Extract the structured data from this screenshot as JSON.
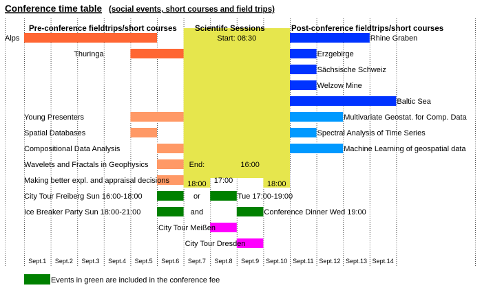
{
  "title": "Conference time table",
  "subtitle": "(social events, short courses and field trips)",
  "legend": {
    "label": "Events in green are included in the conference fee",
    "color": "#008000"
  },
  "colors": {
    "pre_trip": "#ff6633",
    "pre_course": "#ff9966",
    "session": "#e6e64d",
    "post_trip": "#0033ff",
    "post_course": "#0099ff",
    "green": "#008000",
    "magenta": "#ff00ff"
  },
  "chart_data": {
    "type": "gantt",
    "title": "Conference time table",
    "subtitle": "(social events, short courses and field trips)",
    "days": [
      "Sept.1",
      "Sept.2",
      "Sept.3",
      "Sept.4",
      "Sept.5",
      "Sept.6",
      "Sept.7",
      "Sept.8",
      "Sept.9",
      "Sept.10",
      "Sept.11",
      "Sept.12",
      "Sept.13",
      "Sept.14"
    ],
    "section_headers": [
      {
        "text": "Pre-conference fieldtrips/short courses",
        "day": 1
      },
      {
        "text": "Scientifc Sessions",
        "day": 8.5
      },
      {
        "text": "Post-conference fieldtrips/short courses",
        "day": 11.5
      }
    ],
    "sessions_block": {
      "start_day": 7,
      "end_day": 10,
      "color_key": "session"
    },
    "bars": [
      {
        "row": 0,
        "start": 1,
        "end": 5,
        "color_key": "pre_trip",
        "label": "Alps",
        "label_side": "left"
      },
      {
        "row": 0,
        "start": 11,
        "end": 13,
        "color_key": "post_trip",
        "label": "Rhine Graben",
        "label_side": "right"
      },
      {
        "row": 1,
        "start": 5,
        "end": 6,
        "color_key": "pre_trip",
        "label": "Thuringa",
        "label_side": "left"
      },
      {
        "row": 1,
        "start": 11,
        "end": 11,
        "color_key": "post_trip",
        "label": "Erzgebirge",
        "label_side": "right"
      },
      {
        "row": 2,
        "start": 11,
        "end": 11,
        "color_key": "post_trip",
        "label": "Sächsische Schweiz",
        "label_side": "right"
      },
      {
        "row": 3,
        "start": 11,
        "end": 11,
        "color_key": "post_trip",
        "label": "Welzow Mine",
        "label_side": "right"
      },
      {
        "row": 4,
        "start": 11,
        "end": 14,
        "color_key": "post_trip",
        "label": "Baltic Sea",
        "label_side": "right"
      },
      {
        "row": 5,
        "start": 5,
        "end": 6,
        "color_key": "pre_course",
        "label": "Young Presenters",
        "label_side": "leftmargin"
      },
      {
        "row": 5,
        "start": 11,
        "end": 12,
        "color_key": "post_course",
        "label": "Multivariate Geostat. for Comp. Data",
        "label_side": "right"
      },
      {
        "row": 6,
        "start": 5,
        "end": 5,
        "color_key": "pre_course",
        "label": "Spatial Databases",
        "label_side": "leftmargin"
      },
      {
        "row": 6,
        "start": 11,
        "end": 11,
        "color_key": "post_course",
        "label": "Spectral Analysis of Time Series",
        "label_side": "right"
      },
      {
        "row": 7,
        "start": 6,
        "end": 6,
        "color_key": "pre_course",
        "label": "Compositional Data Analysis",
        "label_side": "leftmargin"
      },
      {
        "row": 7,
        "start": 11,
        "end": 12,
        "color_key": "post_course",
        "label": "Machine Learning of geospatial data",
        "label_side": "right"
      },
      {
        "row": 8,
        "start": 6,
        "end": 6,
        "color_key": "pre_course",
        "label": "Wavelets and Fractals in Geophysics",
        "label_side": "leftmargin"
      },
      {
        "row": 9,
        "start": 6,
        "end": 6,
        "color_key": "pre_course",
        "label": "Making better expl. and appraisal decisions",
        "label_side": "leftmargin"
      },
      {
        "row": 10,
        "start": 6,
        "end": 6,
        "color_key": "green",
        "label": "City Tour Freiberg Sun 16:00-18:00",
        "label_side": "leftmargin"
      },
      {
        "row": 10,
        "start": 8,
        "end": 8,
        "color_key": "green",
        "label": "Tue 17:00-19:00",
        "label_side": "right"
      },
      {
        "row": 11,
        "start": 6,
        "end": 6,
        "color_key": "green",
        "label": "Ice Breaker Party Sun 18:00-21:00",
        "label_side": "leftmargin"
      },
      {
        "row": 11,
        "start": 9,
        "end": 9,
        "color_key": "green",
        "label": "Conference Dinner Wed 19:00",
        "label_side": "right"
      },
      {
        "row": 12,
        "start": 8,
        "end": 8,
        "color_key": "magenta",
        "label": "City Tour Meißen",
        "label_side": "left"
      },
      {
        "row": 13,
        "start": 9,
        "end": 9,
        "color_key": "magenta",
        "label": "City Tour Dresden",
        "label_side": "left"
      }
    ],
    "annotations": [
      {
        "row": 0,
        "day": 8.5,
        "text": "Start: 08:30",
        "anchor": "middle"
      },
      {
        "row": 8,
        "day": 7,
        "text": "End:",
        "anchor": "middle"
      },
      {
        "row": 8,
        "day": 9,
        "text": "16:00",
        "anchor": "middle"
      },
      {
        "row": 9,
        "day": 8,
        "text": "17:00",
        "anchor": "middle"
      },
      {
        "row": 10,
        "day": 7,
        "text": "or",
        "anchor": "middle"
      },
      {
        "row": 11,
        "day": 7,
        "text": "and",
        "anchor": "middle"
      }
    ],
    "end_boxes": [
      {
        "day": 7,
        "text": "18:00"
      },
      {
        "day": 10,
        "text": "18:00"
      }
    ]
  }
}
